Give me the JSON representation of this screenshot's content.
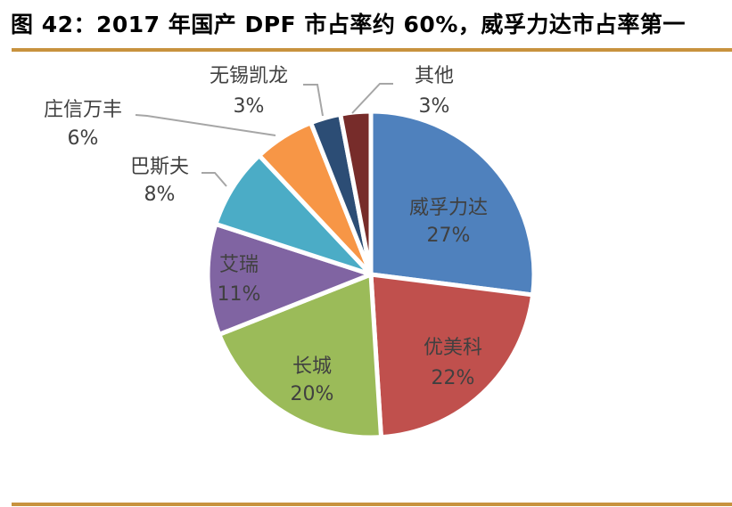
{
  "title": "图 42：2017 年国产 DPF 市占率约 60%，威孚力达市占率第一",
  "chart_data": {
    "type": "pie",
    "title": "图 42：2017 年国产 DPF 市占率约 60%，威孚力达市占率第一",
    "categories": [
      "威孚力达",
      "优美科",
      "长城",
      "艾瑞",
      "巴斯夫",
      "庄信万丰",
      "无锡凯龙",
      "其他"
    ],
    "values": [
      27,
      22,
      20,
      11,
      8,
      6,
      3,
      3
    ],
    "unit": "%",
    "colors": [
      "#4f81bd",
      "#c0504d",
      "#9bbb59",
      "#8064a2",
      "#4bacc6",
      "#f79646",
      "#2c4d75",
      "#772c2a"
    ],
    "start_angle": "12 o'clock, clockwise",
    "legend": "none (data labels with category name and percentage)",
    "labels": [
      {
        "name": "威孚力达",
        "pct": "27%"
      },
      {
        "name": "优美科",
        "pct": "22%"
      },
      {
        "name": "长城",
        "pct": "20%"
      },
      {
        "name": "艾瑞",
        "pct": "11%"
      },
      {
        "name": "巴斯夫",
        "pct": "8%"
      },
      {
        "name": "庄信万丰",
        "pct": "6%"
      },
      {
        "name": "无锡凯龙",
        "pct": "3%"
      },
      {
        "name": "其他",
        "pct": "3%"
      }
    ]
  },
  "colors": {
    "rule": "#c8923e",
    "label_text": "#404040",
    "leader_line": "#a6a6a6"
  }
}
